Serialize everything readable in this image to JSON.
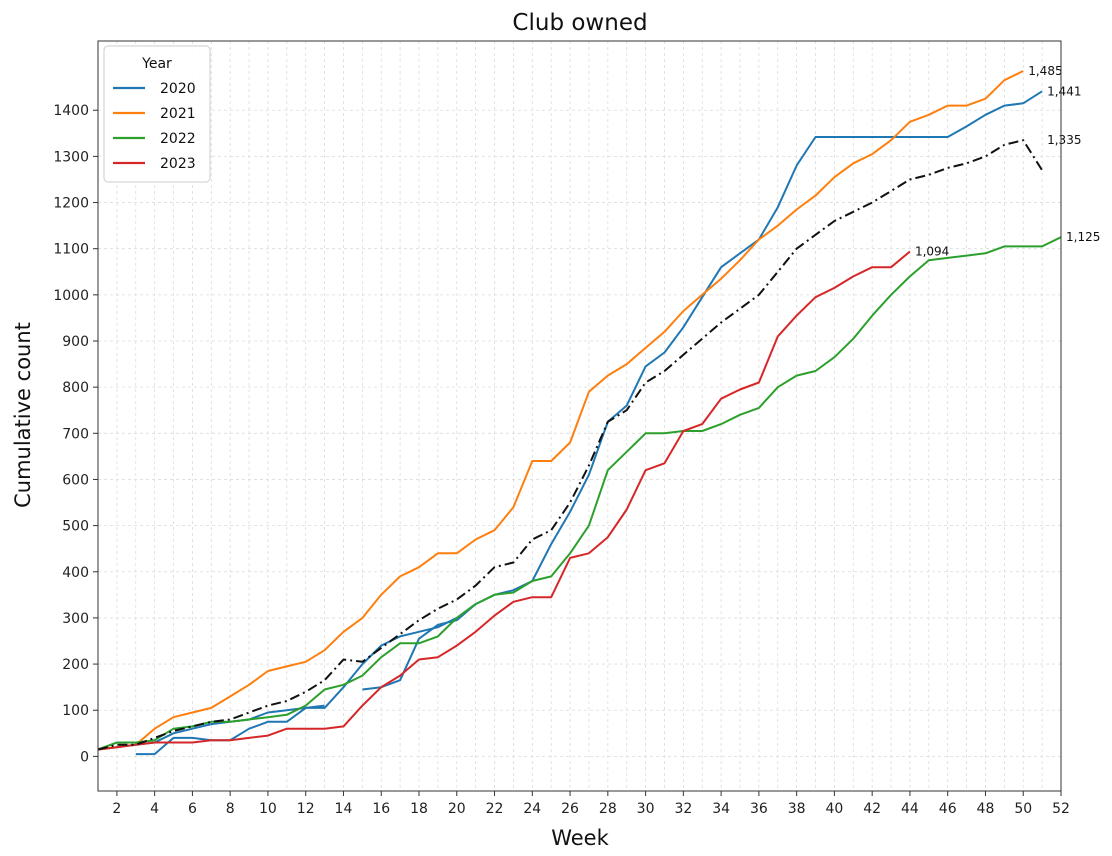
{
  "chart_data": {
    "type": "line",
    "title": "Club owned",
    "xlabel": "Week",
    "ylabel": "Cumulative count",
    "xlim": [
      1,
      52
    ],
    "ylim": [
      -75,
      1550
    ],
    "x_ticks": [
      2,
      4,
      6,
      8,
      10,
      12,
      14,
      16,
      18,
      20,
      22,
      24,
      26,
      28,
      30,
      32,
      34,
      36,
      38,
      40,
      42,
      44,
      46,
      48,
      50,
      52
    ],
    "y_ticks": [
      0,
      100,
      200,
      300,
      400,
      500,
      600,
      700,
      800,
      900,
      1000,
      1100,
      1200,
      1300,
      1400
    ],
    "grid": true,
    "legend": {
      "title": "Year",
      "placement": "top-left"
    },
    "series": [
      {
        "name": "2020",
        "color": "#1f77b4",
        "dash": "solid",
        "segments": [
          {
            "x": [
              1,
              2,
              3,
              4,
              5,
              6,
              7,
              8,
              9,
              10,
              11,
              12,
              13
            ],
            "y": [
              15,
              20,
              25,
              30,
              50,
              60,
              70,
              75,
              80,
              95,
              100,
              105,
              110
            ]
          },
          {
            "x": [
              15,
              16,
              17,
              18,
              19,
              20,
              21
            ],
            "y": [
              145,
              150,
              165,
              255,
              285,
              295,
              330
            ]
          },
          {
            "x": [
              3,
              4,
              5,
              6,
              7,
              8,
              9,
              10,
              11,
              12,
              13,
              14,
              15,
              16,
              17,
              18,
              19,
              20,
              21,
              22,
              23,
              24,
              25,
              26,
              27,
              28,
              29,
              30,
              31,
              32,
              33,
              34,
              35,
              36,
              37,
              38,
              39,
              40,
              41,
              42,
              43,
              44,
              45,
              46,
              47,
              48,
              49,
              50,
              51
            ],
            "y": [
              5,
              5,
              40,
              40,
              35,
              35,
              60,
              75,
              75,
              105,
              105,
              150,
              200,
              240,
              260,
              270,
              280,
              300,
              330,
              350,
              360,
              380,
              460,
              530,
              610,
              725,
              760,
              845,
              875,
              930,
              995,
              1060,
              1090,
              1120,
              1190,
              1280,
              1342,
              1342,
              1342,
              1342,
              1342,
              1342,
              1342,
              1342,
              1365,
              1390,
              1410,
              1415,
              1441
            ]
          }
        ]
      },
      {
        "name": "2021",
        "color": "#ff7f0e",
        "dash": "solid",
        "segments": [
          {
            "x": [
              1,
              2,
              3,
              4,
              5,
              6,
              7,
              8,
              9,
              10,
              11,
              12,
              13,
              14,
              15,
              16,
              17,
              18,
              19,
              20,
              21,
              22,
              23,
              24,
              25,
              26,
              27,
              28,
              29,
              30,
              31,
              32,
              33,
              34,
              35,
              36,
              37,
              38,
              39,
              40,
              41,
              42,
              43,
              44,
              45,
              46,
              47,
              48,
              49,
              50
            ],
            "y": [
              15,
              20,
              25,
              60,
              85,
              95,
              105,
              130,
              155,
              185,
              195,
              205,
              230,
              270,
              300,
              350,
              390,
              410,
              440,
              440,
              470,
              490,
              540,
              640,
              640,
              680,
              790,
              825,
              850,
              885,
              920,
              965,
              1000,
              1035,
              1075,
              1120,
              1150,
              1185,
              1215,
              1255,
              1285,
              1305,
              1335,
              1375,
              1390,
              1410,
              1410,
              1425,
              1465,
              1485
            ]
          }
        ]
      },
      {
        "name": "2022",
        "color": "#2ca02c",
        "dash": "solid",
        "segments": [
          {
            "x": [
              1,
              2,
              3,
              4,
              5,
              6,
              7,
              8,
              9,
              10,
              11,
              12,
              13,
              14,
              15,
              16,
              17,
              18,
              19,
              20,
              21,
              22,
              23,
              24,
              25,
              26,
              27,
              28,
              29,
              30,
              31,
              32,
              33,
              34,
              35,
              36,
              37,
              38,
              39,
              40,
              41,
              42,
              43,
              44,
              45,
              46,
              47,
              48,
              49,
              50,
              51,
              52
            ],
            "y": [
              15,
              30,
              30,
              35,
              60,
              65,
              75,
              75,
              80,
              85,
              90,
              110,
              145,
              155,
              175,
              215,
              245,
              245,
              260,
              300,
              330,
              350,
              355,
              380,
              390,
              440,
              500,
              620,
              660,
              700,
              700,
              705,
              705,
              720,
              740,
              755,
              800,
              825,
              835,
              865,
              905,
              955,
              1000,
              1040,
              1075,
              1080,
              1085,
              1090,
              1105,
              1105,
              1105,
              1125
            ]
          }
        ]
      },
      {
        "name": "2023",
        "color": "#d62728",
        "dash": "solid",
        "segments": [
          {
            "x": [
              1,
              2,
              3,
              4,
              5,
              6,
              7,
              8,
              9,
              10,
              11,
              12,
              13,
              14,
              15,
              16,
              17,
              18,
              19,
              20,
              21,
              22,
              23,
              24,
              25,
              26,
              27,
              28,
              29,
              30,
              31,
              32,
              33,
              34,
              35,
              36,
              37,
              38,
              39,
              40,
              41,
              42,
              43,
              44
            ],
            "y": [
              15,
              20,
              25,
              30,
              30,
              30,
              35,
              35,
              40,
              45,
              60,
              60,
              60,
              65,
              110,
              150,
              175,
              210,
              215,
              240,
              270,
              305,
              335,
              345,
              345,
              430,
              440,
              475,
              535,
              620,
              635,
              705,
              720,
              775,
              795,
              810,
              910,
              955,
              995,
              1015,
              1040,
              1060,
              1060,
              1094
            ]
          }
        ]
      },
      {
        "name": "",
        "color": "#111111",
        "dash": "dashdot",
        "segments": [
          {
            "x": [
              1,
              2,
              3,
              4,
              5,
              6,
              7,
              8,
              9,
              10,
              11,
              12,
              13,
              14,
              15,
              16,
              17,
              18,
              19,
              20,
              21,
              22,
              23,
              24,
              25,
              26,
              27,
              28,
              29,
              30,
              31,
              32,
              33,
              34,
              35,
              36,
              37,
              38,
              39,
              40,
              41,
              42,
              43,
              44,
              45,
              46,
              47,
              48,
              49,
              50,
              51
            ],
            "y": [
              15,
              25,
              25,
              40,
              55,
              65,
              75,
              80,
              95,
              110,
              120,
              140,
              165,
              210,
              205,
              235,
              265,
              295,
              320,
              340,
              370,
              410,
              420,
              470,
              490,
              550,
              630,
              725,
              750,
              810,
              835,
              870,
              905,
              940,
              970,
              1000,
              1050,
              1100,
              1130,
              1160,
              1180,
              1200,
              1225,
              1250,
              1260,
              1275,
              1285,
              1300,
              1325,
              1335,
              1270
            ]
          }
        ]
      }
    ],
    "annotations": [
      {
        "text": "1,485",
        "x": 50,
        "y": 1485
      },
      {
        "text": "1,441",
        "x": 51,
        "y": 1441
      },
      {
        "text": "1,335",
        "x": 51,
        "y": 1335
      },
      {
        "text": "1,125",
        "x": 52,
        "y": 1125
      },
      {
        "text": "1,094",
        "x": 44,
        "y": 1094
      }
    ]
  }
}
